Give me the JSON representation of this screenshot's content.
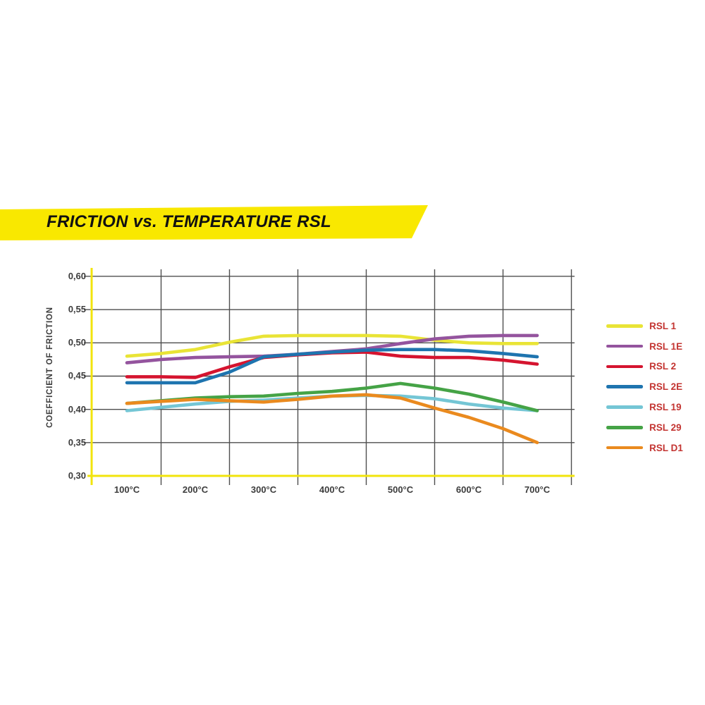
{
  "banner": {
    "title": "FRICTION vs. TEMPERATURE RSL",
    "bg_color": "#f9e800"
  },
  "chart_data": {
    "type": "line",
    "title": "FRICTION vs. TEMPERATURE RSL",
    "ylabel": "COEFFICIENT OF FRICTION",
    "xlabel": "",
    "x": [
      100,
      150,
      200,
      250,
      300,
      350,
      400,
      450,
      500,
      550,
      600,
      650,
      700
    ],
    "x_tick_labels": [
      "100°C",
      "200°C",
      "300°C",
      "400°C",
      "500°C",
      "600°C",
      "700°C"
    ],
    "x_tick_values": [
      100,
      200,
      300,
      400,
      500,
      600,
      700
    ],
    "y_tick_labels": [
      "0,60",
      "0,55",
      "0,50",
      "0,45",
      "0,40",
      "0,35",
      "0,30"
    ],
    "y_tick_values": [
      0.6,
      0.55,
      0.5,
      0.45,
      0.4,
      0.35,
      0.3
    ],
    "ylim": [
      0.3,
      0.6
    ],
    "grid": true,
    "gridline_x_values": [
      150,
      250,
      350,
      450,
      550,
      650,
      750
    ],
    "legend_position": "right",
    "axis_color": "#f2e40c",
    "grid_color": "#4e4e4e",
    "series": [
      {
        "name": "RSL 1",
        "color": "#e9e436",
        "values": [
          0.48,
          0.484,
          0.49,
          0.501,
          0.51,
          0.511,
          0.511,
          0.511,
          0.51,
          0.504,
          0.5,
          0.499,
          0.499
        ]
      },
      {
        "name": "RSL 1E",
        "color": "#94549e",
        "values": [
          0.47,
          0.475,
          0.478,
          0.479,
          0.48,
          0.483,
          0.487,
          0.491,
          0.499,
          0.506,
          0.51,
          0.511,
          0.511
        ]
      },
      {
        "name": "RSL 2",
        "color": "#d5142f",
        "values": [
          0.449,
          0.449,
          0.448,
          0.464,
          0.478,
          0.482,
          0.485,
          0.486,
          0.48,
          0.478,
          0.478,
          0.474,
          0.468
        ]
      },
      {
        "name": "RSL 2E",
        "color": "#1e74af",
        "values": [
          0.44,
          0.44,
          0.44,
          0.456,
          0.479,
          0.483,
          0.486,
          0.489,
          0.49,
          0.49,
          0.488,
          0.484,
          0.479
        ]
      },
      {
        "name": "RSL 19",
        "color": "#74c6d5",
        "values": [
          0.398,
          0.403,
          0.408,
          0.412,
          0.414,
          0.417,
          0.42,
          0.421,
          0.42,
          0.416,
          0.408,
          0.402,
          0.398
        ]
      },
      {
        "name": "RSL 29",
        "color": "#45a346",
        "values": [
          0.409,
          0.413,
          0.417,
          0.419,
          0.42,
          0.424,
          0.427,
          0.432,
          0.439,
          0.432,
          0.423,
          0.411,
          0.398
        ]
      },
      {
        "name": "RSL D1",
        "color": "#ea8a1e",
        "values": [
          0.409,
          0.412,
          0.415,
          0.413,
          0.411,
          0.415,
          0.42,
          0.422,
          0.417,
          0.402,
          0.388,
          0.371,
          0.35
        ]
      }
    ]
  }
}
